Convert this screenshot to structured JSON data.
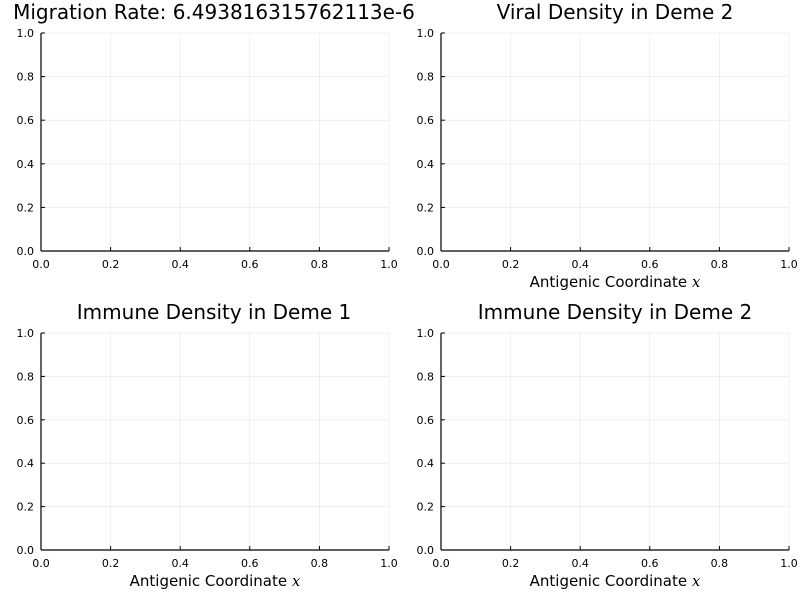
{
  "chart_data": [
    {
      "type": "line",
      "title": "Migration Rate: 6.493816315762113e-6",
      "xlabel": "",
      "xlabel_var": "",
      "xlim": [
        0,
        1
      ],
      "ylim": [
        0,
        1
      ],
      "xticks": [
        "0.0",
        "0.2",
        "0.4",
        "0.6",
        "0.8",
        "1.0"
      ],
      "yticks": [
        "0.0",
        "0.2",
        "0.4",
        "0.6",
        "0.8",
        "1.0"
      ],
      "grid": true,
      "series": []
    },
    {
      "type": "line",
      "title": "Viral Density in Deme 2",
      "xlabel": "Antigenic Coordinate ",
      "xlabel_var": "x",
      "xlim": [
        0,
        1
      ],
      "ylim": [
        0,
        1
      ],
      "xticks": [
        "0.0",
        "0.2",
        "0.4",
        "0.6",
        "0.8",
        "1.0"
      ],
      "yticks": [
        "0.0",
        "0.2",
        "0.4",
        "0.6",
        "0.8",
        "1.0"
      ],
      "grid": true,
      "series": []
    },
    {
      "type": "line",
      "title": "Immune Density in Deme 1",
      "xlabel": "Antigenic Coordinate ",
      "xlabel_var": "x",
      "xlim": [
        0,
        1
      ],
      "ylim": [
        0,
        1
      ],
      "xticks": [
        "0.0",
        "0.2",
        "0.4",
        "0.6",
        "0.8",
        "1.0"
      ],
      "yticks": [
        "0.0",
        "0.2",
        "0.4",
        "0.6",
        "0.8",
        "1.0"
      ],
      "grid": true,
      "series": []
    },
    {
      "type": "line",
      "title": "Immune Density in Deme 2",
      "xlabel": "Antigenic Coordinate ",
      "xlabel_var": "x",
      "xlim": [
        0,
        1
      ],
      "ylim": [
        0,
        1
      ],
      "xticks": [
        "0.0",
        "0.2",
        "0.4",
        "0.6",
        "0.8",
        "1.0"
      ],
      "yticks": [
        "0.0",
        "0.2",
        "0.4",
        "0.6",
        "0.8",
        "1.0"
      ],
      "grid": true,
      "series": []
    }
  ]
}
